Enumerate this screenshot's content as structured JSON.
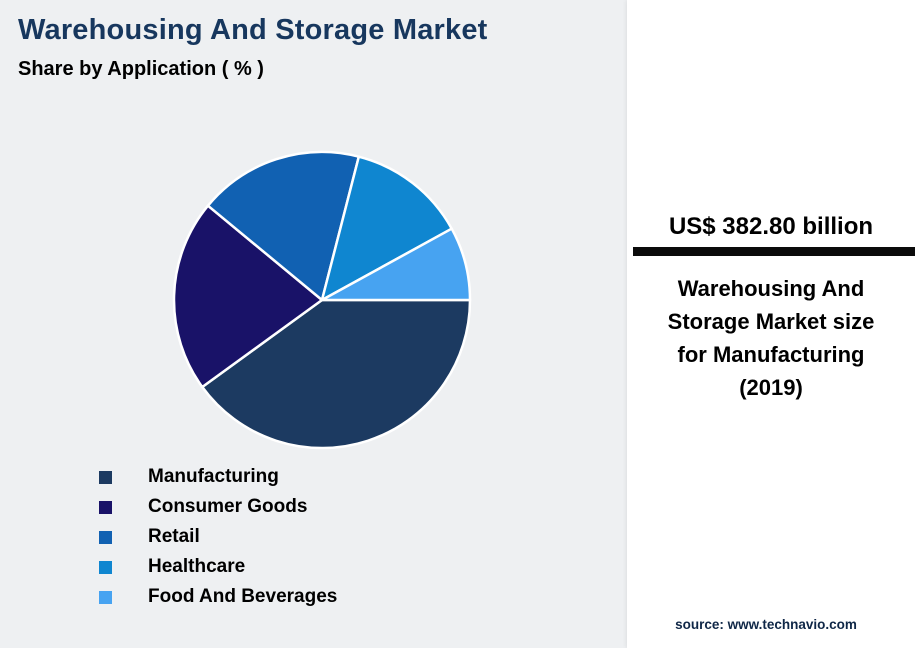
{
  "header": {
    "title": "Warehousing And Storage Market",
    "subtitle": "Share by Application ( % )"
  },
  "chart_data": {
    "type": "pie",
    "title": "Warehousing And Storage Market Share by Application ( % )",
    "note": "No numeric data labels shown; slice values estimated from pie angles",
    "start_angle_clockwise_from_top_deg": 90,
    "legend_position": "bottom-left",
    "slices": [
      {
        "label": "Manufacturing",
        "value": 40,
        "color": "#1C3A61"
      },
      {
        "label": "Consumer Goods",
        "value": 21,
        "color": "#191268"
      },
      {
        "label": "Retail",
        "value": 18,
        "color": "#1161B2"
      },
      {
        "label": "Healthcare",
        "value": 13,
        "color": "#0F86D0"
      },
      {
        "label": "Food And Beverages",
        "value": 8,
        "color": "#47A3F1"
      }
    ]
  },
  "side_panel": {
    "stat_value": "US$ 382.80 billion",
    "caption": "Warehousing And Storage Market size for Manufacturing (2019)",
    "source": "source: www.technavio.com"
  },
  "colors": {
    "background": "#EEF0F2",
    "panel_background": "#FFFFFF",
    "title_text": "#17375E",
    "divider": "#0B0B0B",
    "slice_stroke": "#FFFFFF",
    "source_text": "#0F2747"
  }
}
